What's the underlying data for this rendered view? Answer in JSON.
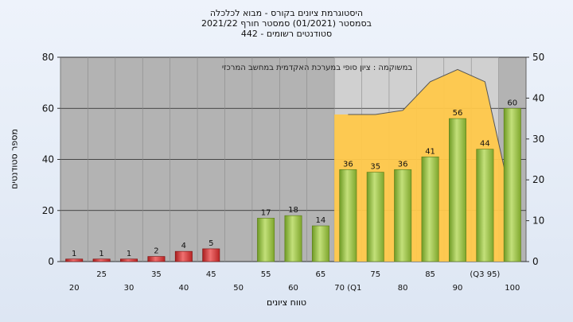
{
  "chart_data": {
    "type": "bar",
    "title": "היסטוגרמת ציונים בקורס - מבוא לכלכלה",
    "subtitle": "בסמסטר (01/2021) סמסטר חורף 2021/22",
    "subtitle2": "סטודנטים רשומים - 442",
    "annotation": "במשוקמה : ציון סופי במערכת האקדמית במחשב המרכזי",
    "ylabel": "מספר סטודנטים",
    "xlabel": "טווח ציונים",
    "ylim": [
      0,
      80
    ],
    "y_ticks": [
      0,
      20,
      40,
      60,
      80
    ],
    "y2lim": [
      0,
      50
    ],
    "y2_ticks": [
      0,
      10,
      20,
      30,
      40,
      50
    ],
    "grid": true,
    "x_ticks_lower": [
      "20",
      "30",
      "40",
      "50",
      "60",
      "70 (Q1",
      "80",
      "90",
      "100"
    ],
    "x_ticks_upper": [
      "25",
      "35",
      "45",
      "55",
      "65",
      "75",
      "85",
      "(Q3 95)"
    ],
    "bins": [
      20,
      25,
      30,
      35,
      40,
      45,
      50,
      55,
      60,
      65,
      70,
      75,
      80,
      85,
      90,
      95,
      100
    ],
    "values": [
      1,
      1,
      1,
      2,
      4,
      5,
      0,
      17,
      18,
      14,
      36,
      35,
      36,
      41,
      56,
      44,
      60
    ],
    "value_labels": [
      "1",
      "1",
      "1",
      "2",
      "4",
      "5",
      "",
      "17",
      "18",
      "14",
      "36",
      "35",
      "36",
      "41",
      "56",
      "44",
      "60"
    ],
    "pass_threshold": 55,
    "curve_y2": [
      36,
      36,
      37,
      44,
      47,
      44,
      14
    ],
    "curve_x": [
      70,
      75,
      80,
      85,
      90,
      95,
      100
    ],
    "colors": {
      "fail_bar": "#d63a3a",
      "pass_bar": "#8fba3a",
      "area": "#ffc84a",
      "plot_bg": "#b3b3b3",
      "iqr_band": "#d0d0d0"
    }
  }
}
